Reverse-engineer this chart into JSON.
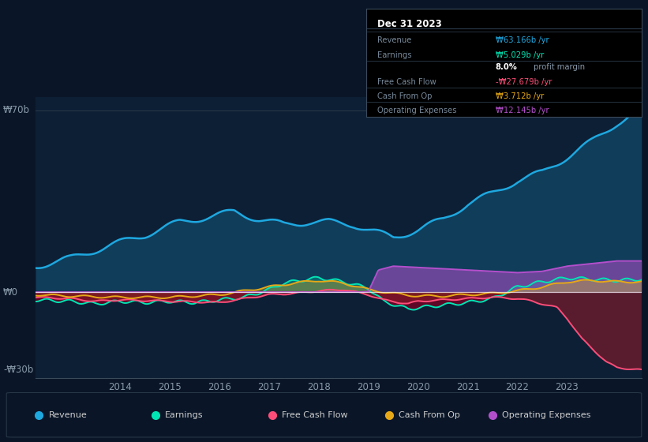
{
  "background_color": "#0a1628",
  "plot_bg_color": "#0d1f35",
  "colors": {
    "revenue": "#1ea8e0",
    "earnings": "#00e5b4",
    "free_cash_flow": "#ff4d79",
    "cash_from_op": "#e6a817",
    "operating_expenses": "#b44fcc"
  },
  "legend": [
    {
      "label": "Revenue",
      "color": "#1ea8e0"
    },
    {
      "label": "Earnings",
      "color": "#00e5b4"
    },
    {
      "label": "Free Cash Flow",
      "color": "#ff4d79"
    },
    {
      "label": "Cash From Op",
      "color": "#e6a817"
    },
    {
      "label": "Operating Expenses",
      "color": "#b44fcc"
    }
  ],
  "ylabel_top": "₩70b",
  "ylabel_zero": "₩0",
  "ylabel_bot": "-₩30b",
  "ylim": [
    -33,
    75
  ],
  "xlim": [
    2012.3,
    2024.5
  ],
  "year_ticks": [
    2014,
    2015,
    2016,
    2017,
    2018,
    2019,
    2020,
    2021,
    2022,
    2023
  ],
  "info_box": {
    "title": "Dec 31 2023",
    "rows": [
      {
        "label": "Revenue",
        "value": "₩63.166b /yr",
        "color": "#1ea8e0"
      },
      {
        "label": "Earnings",
        "value": "₩5.029b /yr",
        "color": "#00e5b4"
      },
      {
        "label": "",
        "value": "8.0% profit margin",
        "color": "#ffffff"
      },
      {
        "label": "Free Cash Flow",
        "value": "-₩27.679b /yr",
        "color": "#ff4d79"
      },
      {
        "label": "Cash From Op",
        "value": "₩3.712b /yr",
        "color": "#e6a817"
      },
      {
        "label": "Operating Expenses",
        "value": "₩12.145b /yr",
        "color": "#b44fcc"
      }
    ]
  }
}
